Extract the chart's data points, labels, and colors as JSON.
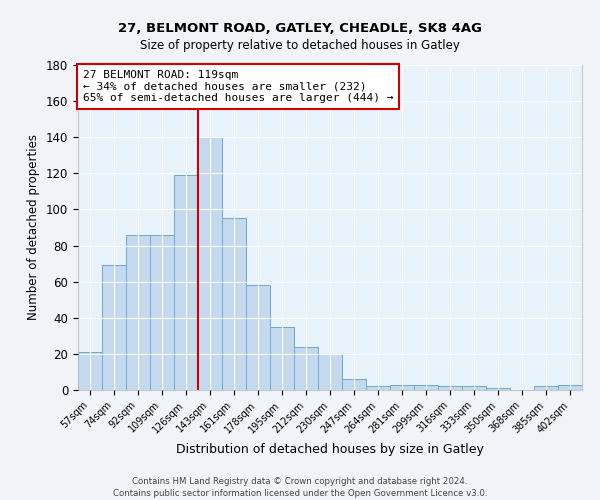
{
  "title1": "27, BELMONT ROAD, GATLEY, CHEADLE, SK8 4AG",
  "title2": "Size of property relative to detached houses in Gatley",
  "xlabel": "Distribution of detached houses by size in Gatley",
  "ylabel": "Number of detached properties",
  "categories": [
    "57sqm",
    "74sqm",
    "92sqm",
    "109sqm",
    "126sqm",
    "143sqm",
    "161sqm",
    "178sqm",
    "195sqm",
    "212sqm",
    "230sqm",
    "247sqm",
    "264sqm",
    "281sqm",
    "299sqm",
    "316sqm",
    "333sqm",
    "350sqm",
    "368sqm",
    "385sqm",
    "402sqm"
  ],
  "values": [
    21,
    69,
    86,
    86,
    119,
    140,
    95,
    58,
    35,
    24,
    20,
    6,
    2,
    3,
    3,
    2,
    2,
    1,
    0,
    2,
    3
  ],
  "bar_color": "#c5d9ee",
  "bar_edge_color": "#6aaad4",
  "background_color": "#e8f2fb",
  "grid_color": "#ffffff",
  "vline_index": 4.5,
  "vline_color": "#cc0000",
  "annotation_text": "27 BELMONT ROAD: 119sqm\n← 34% of detached houses are smaller (232)\n65% of semi-detached houses are larger (444) →",
  "annotation_box_color": "#ffffff",
  "annotation_box_edge_color": "#cc0000",
  "ylim": [
    0,
    180
  ],
  "yticks": [
    0,
    20,
    40,
    60,
    80,
    100,
    120,
    140,
    160,
    180
  ],
  "fig_bg": "#f0f4f8",
  "footer1": "Contains HM Land Registry data © Crown copyright and database right 2024.",
  "footer2": "Contains public sector information licensed under the Open Government Licence v3.0."
}
